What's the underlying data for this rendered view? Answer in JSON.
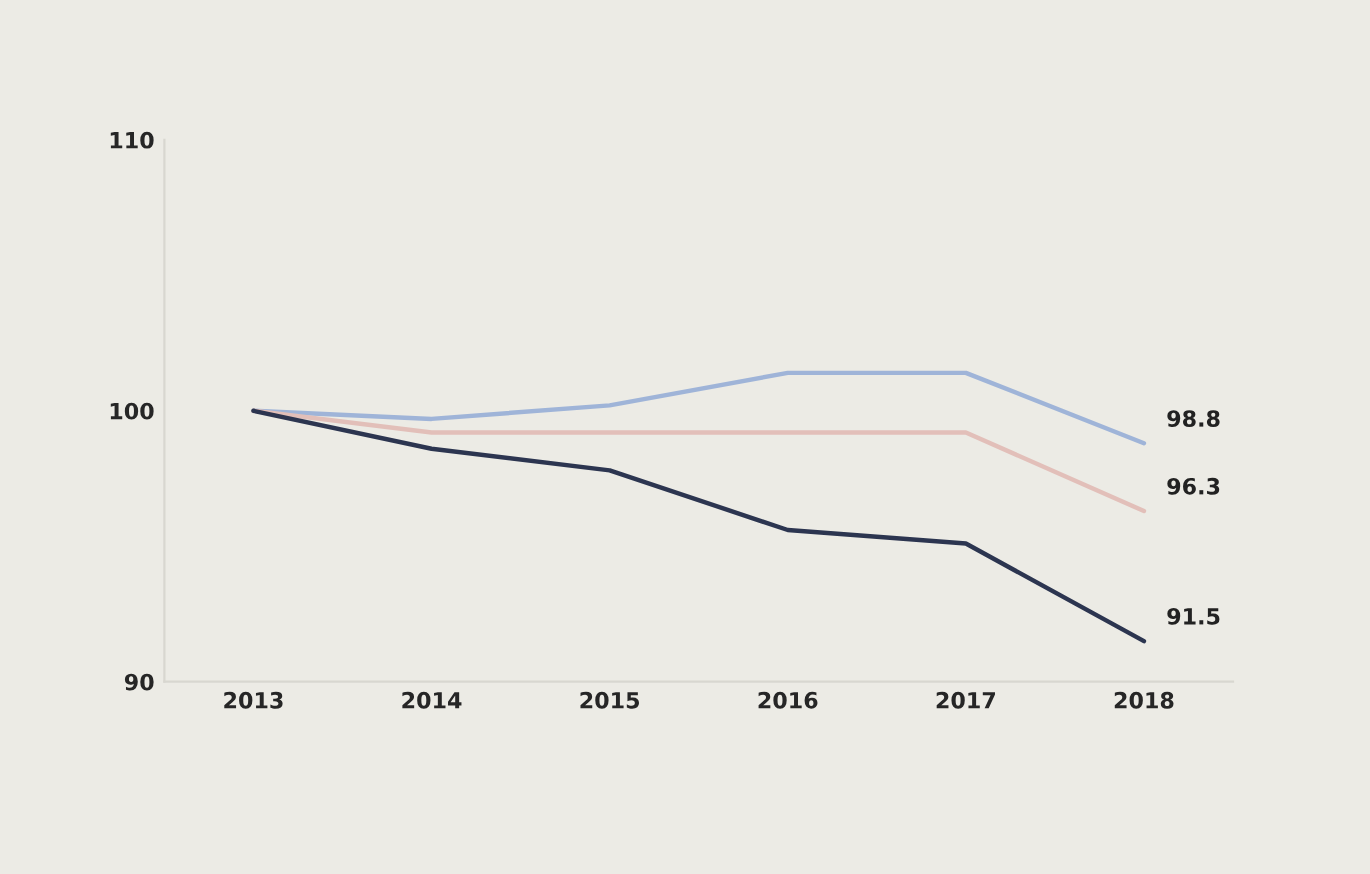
{
  "chart_data": {
    "type": "line",
    "categories": [
      "2013",
      "2014",
      "2015",
      "2016",
      "2017",
      "2018"
    ],
    "series": [
      {
        "color": "#9fb4d8",
        "values": [
          100,
          99.7,
          100.2,
          101.4,
          101.4,
          98.8
        ],
        "value_labels": [
          null,
          null,
          null,
          null,
          null,
          "98.8"
        ]
      },
      {
        "color": "#e2bfb9",
        "values": [
          100,
          99.2,
          99.2,
          99.2,
          99.2,
          96.3
        ],
        "value_labels": [
          null,
          null,
          null,
          null,
          null,
          "96.3"
        ]
      },
      {
        "color": "#2c3550",
        "values": [
          100,
          98.6,
          97.8,
          95.6,
          95.1,
          91.5
        ],
        "value_labels": [
          null,
          null,
          null,
          null,
          null,
          "91.5"
        ]
      }
    ],
    "ylim": [
      90,
      110
    ],
    "yticks": [
      90,
      100,
      110
    ],
    "grid": false,
    "marker": "none"
  }
}
